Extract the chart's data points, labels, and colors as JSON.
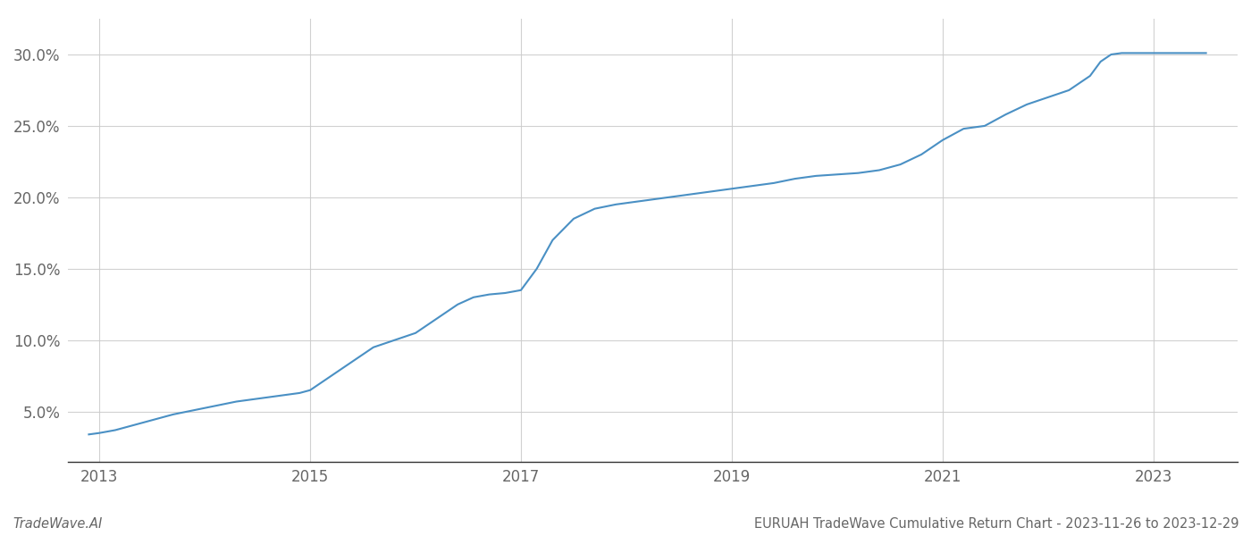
{
  "title": "",
  "footer_left": "TradeWave.AI",
  "footer_right": "EURUAH TradeWave Cumulative Return Chart - 2023-11-26 to 2023-12-29",
  "line_color": "#4a90c4",
  "background_color": "#ffffff",
  "grid_color": "#cccccc",
  "x_values": [
    2012.9,
    2013.0,
    2013.15,
    2013.3,
    2013.5,
    2013.7,
    2013.9,
    2014.1,
    2014.3,
    2014.5,
    2014.7,
    2014.9,
    2015.0,
    2015.2,
    2015.4,
    2015.6,
    2015.8,
    2016.0,
    2016.2,
    2016.4,
    2016.55,
    2016.7,
    2016.85,
    2017.0,
    2017.15,
    2017.3,
    2017.5,
    2017.7,
    2017.9,
    2018.1,
    2018.3,
    2018.5,
    2018.7,
    2018.9,
    2019.0,
    2019.2,
    2019.4,
    2019.6,
    2019.8,
    2020.0,
    2020.2,
    2020.4,
    2020.6,
    2020.8,
    2021.0,
    2021.2,
    2021.4,
    2021.6,
    2021.8,
    2022.0,
    2022.2,
    2022.4,
    2022.5,
    2022.6,
    2022.7,
    2022.8,
    2022.9,
    2023.0,
    2023.1,
    2023.3,
    2023.5
  ],
  "y_values": [
    3.4,
    3.5,
    3.7,
    4.0,
    4.4,
    4.8,
    5.1,
    5.4,
    5.7,
    5.9,
    6.1,
    6.3,
    6.5,
    7.5,
    8.5,
    9.5,
    10.0,
    10.5,
    11.5,
    12.5,
    13.0,
    13.2,
    13.3,
    13.5,
    15.0,
    17.0,
    18.5,
    19.2,
    19.5,
    19.7,
    19.9,
    20.1,
    20.3,
    20.5,
    20.6,
    20.8,
    21.0,
    21.3,
    21.5,
    21.6,
    21.7,
    21.9,
    22.3,
    23.0,
    24.0,
    24.8,
    25.0,
    25.8,
    26.5,
    27.0,
    27.5,
    28.5,
    29.5,
    30.0,
    30.1,
    30.1,
    30.1,
    30.1,
    30.1,
    30.1,
    30.1
  ],
  "xlim": [
    2012.7,
    2023.8
  ],
  "ylim": [
    1.5,
    32.5
  ],
  "yticks": [
    5.0,
    10.0,
    15.0,
    20.0,
    25.0,
    30.0
  ],
  "xticks": [
    2013,
    2015,
    2017,
    2019,
    2021,
    2023
  ],
  "line_width": 1.5,
  "tick_label_color": "#666666",
  "footer_fontsize": 10.5,
  "tick_fontsize": 12
}
